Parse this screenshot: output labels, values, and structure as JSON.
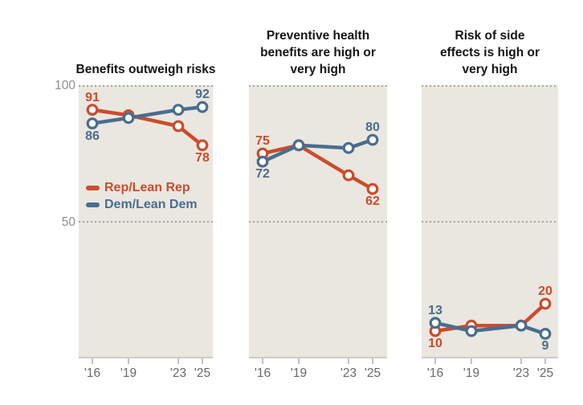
{
  "colors": {
    "rep": "#cb4c2d",
    "dem": "#4a6d8e",
    "plot_bg": "#eae7e0",
    "grid_dots": "#a8a5a0",
    "axis_line": "#d0cdc7",
    "x_label": "#6b6966",
    "y_label": "#908e8a",
    "title": "#141414"
  },
  "y_axis": {
    "ticks": [
      "100",
      "50"
    ]
  },
  "x_axis": {
    "ticks": [
      "'16",
      "'19",
      "'23",
      "'25"
    ],
    "years": [
      2016,
      2019,
      2023,
      2025
    ]
  },
  "legend": {
    "position": "inside-first-panel",
    "items": [
      {
        "label": "Rep/Lean Rep",
        "color_key": "rep"
      },
      {
        "label": "Dem/Lean Dem",
        "color_key": "dem"
      }
    ]
  },
  "chart_data": [
    {
      "type": "line",
      "title": "Benefits outweigh risks",
      "title_lines": [
        "Benefits outweigh risks"
      ],
      "categories": [
        "'16",
        "'19",
        "'23",
        "'25"
      ],
      "ylim": [
        0,
        100
      ],
      "gridlines_y": [
        100,
        50
      ],
      "series": [
        {
          "name": "Rep/Lean Rep",
          "key": "rep",
          "color": "#cb4c2d",
          "values": [
            91,
            89,
            85,
            78
          ],
          "endpoint_labels": {
            "first": "above",
            "last": "below"
          }
        },
        {
          "name": "Dem/Lean Dem",
          "key": "dem",
          "color": "#4a6d8e",
          "values": [
            86,
            88,
            91,
            92
          ],
          "endpoint_labels": {
            "first": "below",
            "last": "above"
          }
        }
      ]
    },
    {
      "type": "line",
      "title": "Preventive health benefits are high or very high",
      "title_lines": [
        "Preventive health",
        "benefits are high or",
        "very high"
      ],
      "categories": [
        "'16",
        "'19",
        "'23",
        "'25"
      ],
      "ylim": [
        0,
        100
      ],
      "gridlines_y": [
        100,
        50
      ],
      "series": [
        {
          "name": "Rep/Lean Rep",
          "key": "rep",
          "color": "#cb4c2d",
          "values": [
            75,
            78,
            67,
            62
          ],
          "endpoint_labels": {
            "first": "above",
            "last": "below"
          }
        },
        {
          "name": "Dem/Lean Dem",
          "key": "dem",
          "color": "#4a6d8e",
          "values": [
            72,
            78,
            77,
            80
          ],
          "endpoint_labels": {
            "first": "below",
            "last": "above"
          }
        }
      ]
    },
    {
      "type": "line",
      "title": "Risk of side effects is high or very high",
      "title_lines": [
        "Risk of side",
        "effects is high or",
        "very high"
      ],
      "categories": [
        "'16",
        "'19",
        "'23",
        "'25"
      ],
      "ylim": [
        0,
        100
      ],
      "gridlines_y": [
        100,
        50
      ],
      "series": [
        {
          "name": "Rep/Lean Rep",
          "key": "rep",
          "color": "#cb4c2d",
          "values": [
            10,
            12,
            12,
            20
          ],
          "endpoint_labels": {
            "first": "below",
            "last": "above"
          }
        },
        {
          "name": "Dem/Lean Dem",
          "key": "dem",
          "color": "#4a6d8e",
          "values": [
            13,
            10,
            12,
            9
          ],
          "endpoint_labels": {
            "first": "above",
            "last": "below"
          }
        }
      ]
    }
  ]
}
